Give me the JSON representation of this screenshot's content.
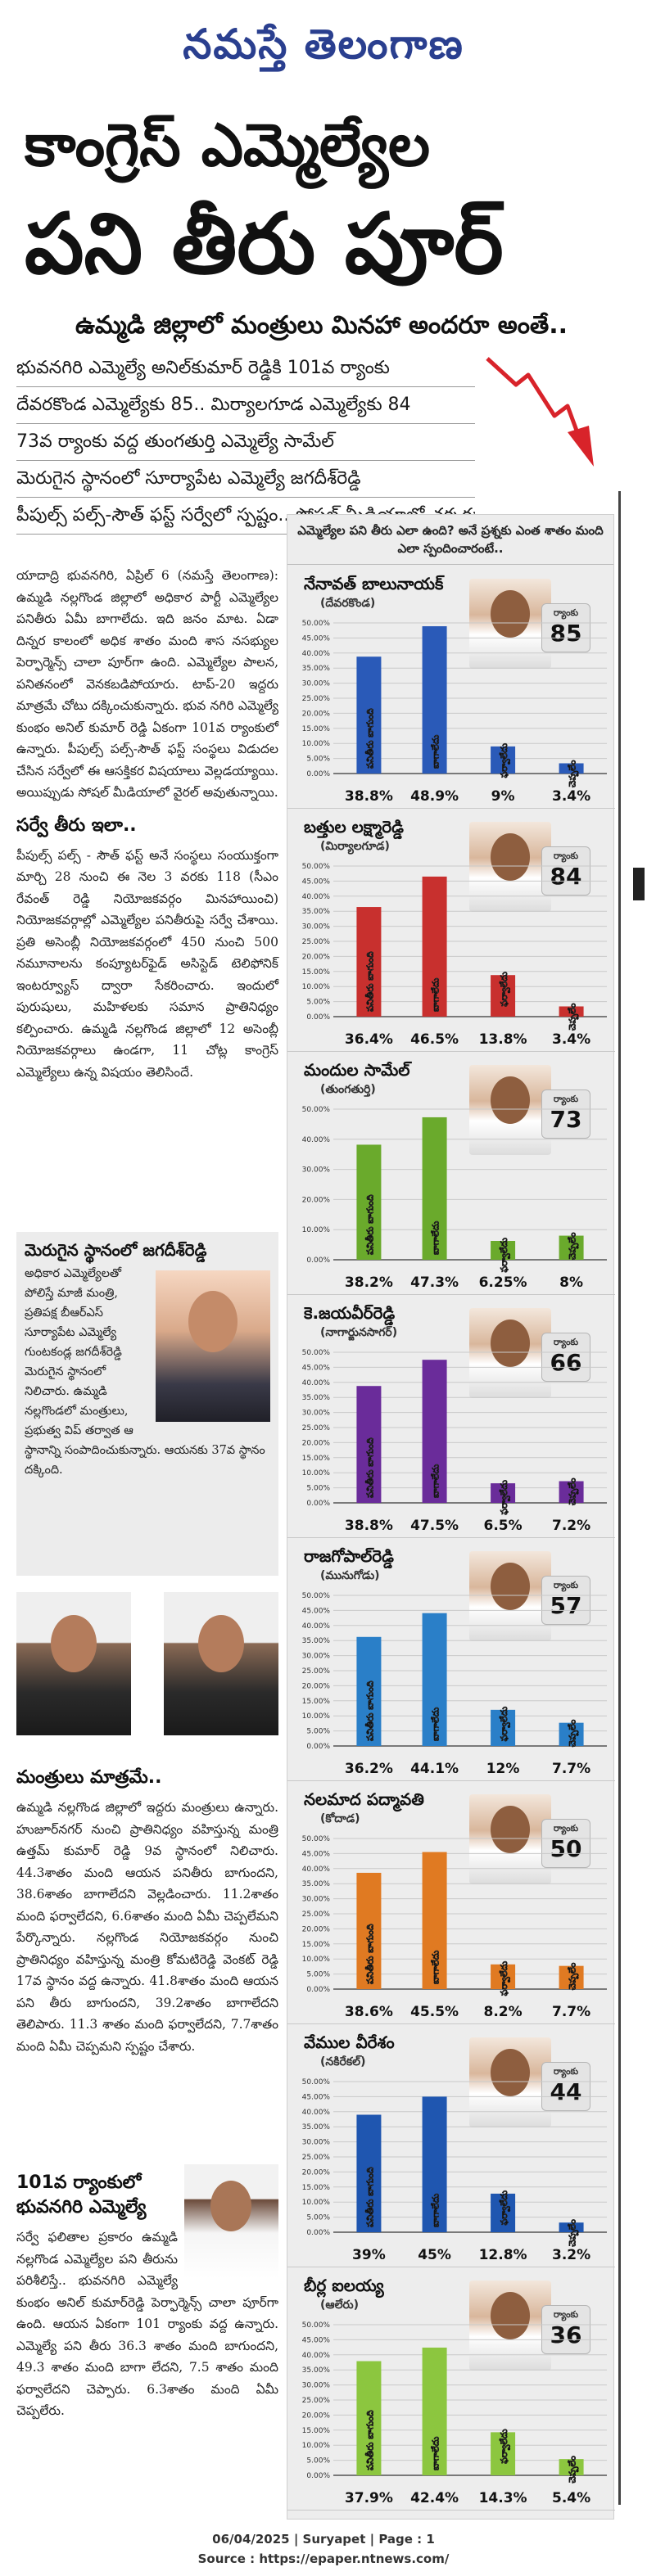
{
  "masthead": {
    "title": "నమస్తే తెలంగాణ"
  },
  "headline": {
    "line1": "కాంగ్రెస్ ఎమ్మెల్యేల",
    "line2": "పని తీరు పూర్",
    "subhead": "ఉమ్మడి జిల్లాలో మంత్రులు మినహా అందరూ అంతే.."
  },
  "deck": [
    "భువనగిరి ఎమ్మెల్యే అనిల్‌కుమార్ రెడ్డికి 101వ ర్యాంకు",
    "దేవరకొండ ఎమ్మెల్యేకు 85.. మిర్యాలగూడ ఎమ్మెల్యేకు 84",
    "73వ ర్యాంకు వద్ద తుంగతుర్తి ఎమ్మెల్యే సామేల్",
    "మెరుగైన స్థానంలో సూర్యాపేట ఎమ్మెల్యే జగదీశ్‌రెడ్డి",
    "పీపుల్స్ పల్స్-సౌత్ ఫస్ట్ సర్వేలో స్పష్టం.. సోషల్ మీడియాలో చక్కర్లు"
  ],
  "article": {
    "intro": "యాదాద్రి భువనగిరి, ఏప్రిల్ 6 (నమస్తే తెలంగాణ): ఉమ్మడి నల్లగొండ జిల్లాలో అధికార పార్టీ ఎమ్మెల్యేల పనితీరు ఏమీ బాగాలేదు. ఇది జనం మాట. ఏడా దిన్నర కాలంలో అధిక శాతం మంది శాస నసభ్యుల పెర్ఫార్మెన్స్ చాలా పూర్‌గా ఉంది. ఎమ్మెల్యేల పాలన, పనితనంలో వెనకబడిపోయారు. టాప్-20 ఇద్దరు మాత్రమే చోటు దక్కించుకున్నారు. భువ నగిరి ఎమ్మెల్యే కుంభం అనిల్ కుమార్ రెడ్డి ఏకంగా 101వ ర్యాంకులో ఉన్నారు. పీపుల్స్ పల్స్-సౌత్ ఫస్ట్ సంస్థలు విడుదల చేసిన సర్వేలో ఈ ఆసక్తికర విషయాలు వెల్లడయ్యాయి. అయిప్పుడు సోషల్ మీడియాలో వైరల్ అవుతున్నాయి.",
    "survey_head": "సర్వే తీరు ఇలా..",
    "survey_text": "పీపుల్స్ పల్స్ - సౌత్ ఫస్ట్ అనే సంస్థలు సంయుక్తంగా మార్చి 28 నుంచి ఈ నెల 3 వరకు 118 (సీఎం రేవంత్ రెడ్డి నియోజకవర్గం మినహాయించి) నియోజకవర్గాల్లో ఎమ్మెల్యేల పనితీరుపై సర్వే చేశాయి. ప్రతి అసెంబ్లీ నియోజకవర్గంలో 450 నుంచి 500 నమూనాలను కంప్యూటర్‌ఫైడ్ అసిస్టెడ్ టెలిఫోనిక్ ఇంటర్వ్యూస్ ద్వారా సేకరించారు. ఇందులో పురుషులు, మహిళలకు సమాన ప్రాతినిధ్యం కల్పించారు. ఉమ్మడి నల్లగొండ జిల్లాలో 12 అసెంబ్లీ నియోజకవర్గాలు ఉండగా, 11 చోట్ల కాంగ్రెస్ ఎమ్మెల్యేలు ఉన్న విషయం తెలిసిందే."
  },
  "jagadish_box": {
    "head": "మెరుగైన స్థానంలో జగదీశ్‌రెడ్డి",
    "text": "అధికార ఎమ్మెల్యేలతో పోలిస్తే మాజీ మంత్రి, ప్రతిపక్ష బీఆర్ఎస్ సూర్యాపేట ఎమ్మెల్యే గుంటకండ్ల జగదీశ్‌రెడ్డి మెరుగైన స్థానంలో నిలిచారు. ఉమ్మడి నల్లగొండలో మంత్రులు, ప్రభుత్వ విప్ తర్వాత ఆ స్థానాన్ని సంపాదించుకున్నారు. ఆయనకు 37వ స్థానం దక్కింది."
  },
  "ministers": {
    "head": "మంత్రులు మాత్రమే..",
    "text": "ఉమ్మడి నల్లగొండ జిల్లాలో ఇద్దరు మంత్రులు ఉన్నారు. హుజూర్‌నగర్ నుంచి ప్రాతినిధ్యం వహిస్తున్న మంత్రి ఉత్తమ్ కుమార్ రెడ్డి 9వ స్థానంలో నిలిచారు. 44.3శాతం మంది ఆయన పనితీరు బాగుందని, 38.6శాతం బాగాలేదని వెల్లడించారు. 11.2శాతం మంది ఫర్వాలేదని, 6.6శాతం మంది ఏమీ చెప్పలేమని పేర్కొన్నారు. నల్లగొండ నియోజకవర్గం నుంచి ప్రాతినిధ్యం వహిస్తున్న మంత్రి కోమటిరెడ్డి వెంకట్ రెడ్డి 17వ స్థానం వద్ద ఉన్నారు. 41.8శాతం మంది ఆయన పని తీరు బాగుందని, 39.2శాతం బాగాలేదని తెలిపారు. 11.3 శాతం మంది ఫర్వాలేదని, 7.7శాతం మంది ఏమీ చెప్పమని స్పష్టం చేశారు."
  },
  "bhuvanagiri": {
    "head": "101వ ర్యాంకులో భువనగిరి ఎమ్మెల్యే",
    "text": "సర్వే ఫలితాల ప్రకారం ఉమ్మడి నల్లగొండ ఎమ్మెల్యేల పని తీరును పరిశీలిస్తే.. భువనగిరి ఎమ్మెల్యే కుంభం అనిల్ కుమార్‌రెడ్డి పెర్ఫార్మెన్స్ చాలా పూర్‌గా ఉంది. ఆయన ఏకంగా 101 ర్యాంకు వద్ద ఉన్నారు. ఎమ్మెల్యే పని తీరు 36.3 శాతం మంది బాగుందని, 49.3 శాతం మంది బాగా లేదని, 7.5 శాతం మంది ఫర్వాలేదని చెప్పారు. 6.3శాతం మంది ఏమీ చెప్పలేరు."
  },
  "panel": {
    "intro": "ఎమ్మెల్యేల పని తీరు ఎలా ఉంది? అనే ప్రశ్నకు ఎంత శాతం మంది ఎలా స్పందించారంటే..",
    "rank_label": "ర్యాంకు"
  },
  "chart_data": [
    {
      "type": "bar",
      "name": "నేనావత్ బాలునాయక్",
      "place": "(దేవరకొండ)",
      "rank": "85",
      "color": "#2a5ab8",
      "categories": [
        "పనితీరు బాగుంది",
        "బాగాలేదు",
        "ఫర్వాలేదు",
        "చెప్పలేం"
      ],
      "values": [
        38.8,
        48.9,
        9,
        3.4
      ],
      "labels": [
        "38.8%",
        "48.9%",
        "9%",
        "3.4%"
      ],
      "ylim": [
        0,
        50
      ],
      "yticks": [
        "0.00%",
        "5.00%",
        "10.00%",
        "15.00%",
        "20.00%",
        "25.00%",
        "30.00%",
        "35.00%",
        "40.00%",
        "45.00%",
        "50.00%"
      ]
    },
    {
      "type": "bar",
      "name": "బత్తుల లక్ష్మారెడ్డి",
      "place": "(మిర్యాలగూడ)",
      "rank": "84",
      "color": "#c8302e",
      "categories": [
        "పనితీరు బాగుంది",
        "బాగాలేదు",
        "ఫర్వాలేదు",
        "చెప్పలేం"
      ],
      "values": [
        36.4,
        46.5,
        13.8,
        3.4
      ],
      "labels": [
        "36.4%",
        "46.5%",
        "13.8%",
        "3.4%"
      ],
      "ylim": [
        0,
        50
      ],
      "yticks": [
        "0.00%",
        "5.00%",
        "10.00%",
        "15.00%",
        "20.00%",
        "25.00%",
        "30.00%",
        "35.00%",
        "40.00%",
        "45.00%",
        "50.00%"
      ]
    },
    {
      "type": "bar",
      "name": "మందుల సామేల్",
      "place": "(తుంగతుర్తి)",
      "rank": "73",
      "color": "#6aaa2c",
      "categories": [
        "పనితీరు బాగుంది",
        "బాగాలేదు",
        "ఫర్వాలేదు",
        "చెప్పలేం"
      ],
      "values": [
        38.2,
        47.3,
        6.25,
        8
      ],
      "labels": [
        "38.2%",
        "47.3%",
        "6.25%",
        "8%"
      ],
      "ylim": [
        0,
        50
      ],
      "yticks": [
        "0.00%",
        "10.00%",
        "20.00%",
        "30.00%",
        "40.00%",
        "50.00%"
      ]
    },
    {
      "type": "bar",
      "name": "కె.జయవీర్‌రెడ్డి",
      "place": "(నాగార్జునసాగర్)",
      "rank": "66",
      "color": "#6a2c9a",
      "categories": [
        "పనితీరు బాగుంది",
        "బాగాలేదు",
        "ఫర్వాలేదు",
        "చెప్పలేం"
      ],
      "values": [
        38.8,
        47.5,
        6.5,
        7.2
      ],
      "labels": [
        "38.8%",
        "47.5%",
        "6.5%",
        "7.2%"
      ],
      "ylim": [
        0,
        50
      ],
      "yticks": [
        "0.00%",
        "5.00%",
        "10.00%",
        "15.00%",
        "20.00%",
        "25.00%",
        "30.00%",
        "35.00%",
        "40.00%",
        "45.00%",
        "50.00%"
      ]
    },
    {
      "type": "bar",
      "name": "రాజగోపాల్‌రెడ్డి",
      "place": "(మునుగోడు)",
      "rank": "57",
      "color": "#2a7fc8",
      "categories": [
        "పనితీరు బాగుంది",
        "బాగాలేదు",
        "ఫర్వాలేదు",
        "చెప్పలేం"
      ],
      "values": [
        36.2,
        44.1,
        12,
        7.7
      ],
      "labels": [
        "36.2%",
        "44.1%",
        "12%",
        "7.7%"
      ],
      "ylim": [
        0,
        50
      ],
      "yticks": [
        "0.00%",
        "5.00%",
        "10.00%",
        "15.00%",
        "20.00%",
        "25.00%",
        "30.00%",
        "35.00%",
        "40.00%",
        "45.00%",
        "50.00%"
      ]
    },
    {
      "type": "bar",
      "name": "నలమాద పద్మావతి",
      "place": "(కోదాడ)",
      "rank": "50",
      "color": "#e07a22",
      "categories": [
        "పనితీరు బాగుంది",
        "బాగాలేదు",
        "ఫర్వాలేదు",
        "చెప్పలేం"
      ],
      "values": [
        38.6,
        45.5,
        8.2,
        7.7
      ],
      "labels": [
        "38.6%",
        "45.5%",
        "8.2%",
        "7.7%"
      ],
      "ylim": [
        0,
        50
      ],
      "yticks": [
        "0.00%",
        "5.00%",
        "10.00%",
        "15.00%",
        "20.00%",
        "25.00%",
        "30.00%",
        "35.00%",
        "40.00%",
        "45.00%",
        "50.00%"
      ]
    },
    {
      "type": "bar",
      "name": "వేముల వీరేశం",
      "place": "(నకిరేకల్)",
      "rank": "44",
      "color": "#1f56b0",
      "categories": [
        "పనితీరు బాగుంది",
        "బాగాలేదు",
        "ఫర్వాలేదు",
        "చెప్పలేం"
      ],
      "values": [
        39,
        45,
        12.8,
        3.2
      ],
      "labels": [
        "39%",
        "45%",
        "12.8%",
        "3.2%"
      ],
      "ylim": [
        0,
        50
      ],
      "yticks": [
        "0.00%",
        "5.00%",
        "10.00%",
        "15.00%",
        "20.00%",
        "25.00%",
        "30.00%",
        "35.00%",
        "40.00%",
        "45.00%",
        "50.00%"
      ]
    },
    {
      "type": "bar",
      "name": "బీర్ల ఐలయ్య",
      "place": "(ఆలేరు)",
      "rank": "36",
      "color": "#8cc63f",
      "categories": [
        "పనితీరు బాగుంది",
        "బాగాలేదు",
        "ఫర్వాలేదు",
        "చెప్పలేం"
      ],
      "values": [
        37.9,
        42.4,
        14.3,
        5.4
      ],
      "labels": [
        "37.9%",
        "42.4%",
        "14.3%",
        "5.4%"
      ],
      "ylim": [
        0,
        50
      ],
      "yticks": [
        "0.00%",
        "5.00%",
        "10.00%",
        "15.00%",
        "20.00%",
        "25.00%",
        "30.00%",
        "35.00%",
        "40.00%",
        "45.00%",
        "50.00%"
      ]
    }
  ],
  "footer": {
    "date_line": "06/04/2025 | Suryapet | Page : 1",
    "source_line": "Source : https://epaper.ntnews.com/"
  },
  "colors": {
    "masthead": "#2a3f8f",
    "arrow": "#d8232a"
  }
}
